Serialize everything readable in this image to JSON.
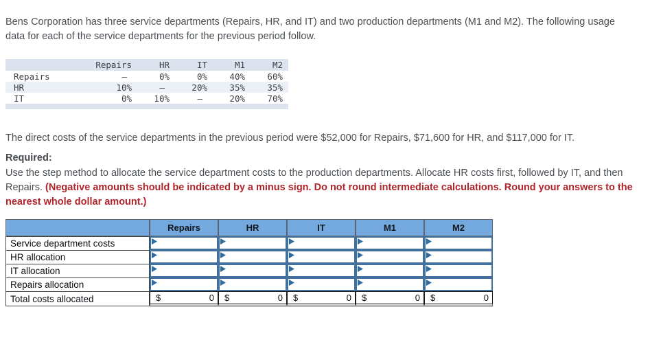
{
  "colors": {
    "body_text": "#4a4e52",
    "emphasis_red": "#ae252b",
    "table_header_blue": "#74a9df",
    "input_border_blue": "#41719c",
    "flag_blue": "#2e6da4",
    "usage_band": "#dce3ef",
    "usage_stripe": "#ecf1f8"
  },
  "intro": {
    "text": "Bens Corporation has three service departments (Repairs, HR, and IT) and two production departments (M1 and M2). The following usage data for each of the service departments for the previous period follow."
  },
  "usage_table": {
    "columns": [
      "Repairs",
      "HR",
      "IT",
      "M1",
      "M2"
    ],
    "rows": [
      {
        "label": "Repairs",
        "values": [
          "–",
          "0%",
          "0%",
          "40%",
          "60%"
        ]
      },
      {
        "label": "HR",
        "values": [
          "10%",
          "–",
          "20%",
          "35%",
          "35%"
        ]
      },
      {
        "label": "IT",
        "values": [
          "0%",
          "10%",
          "–",
          "20%",
          "70%"
        ]
      }
    ]
  },
  "direct_costs": {
    "text": "The direct costs of the service departments in the previous period were $52,000 for Repairs, $71,600 for HR, and $117,000 for IT."
  },
  "required": {
    "label": "Required:",
    "text": "Use the step method to allocate the service department costs to the production departments. Allocate HR costs first, followed by IT, and then Repairs. ",
    "emphasis": "(Negative amounts should be indicated by a minus sign. Do not round intermediate calculations. Round your answers to the nearest whole dollar amount.)"
  },
  "allocation_table": {
    "columns": [
      "Repairs",
      "HR",
      "IT",
      "M1",
      "M2"
    ],
    "input_rows": [
      {
        "label": "Service department costs"
      },
      {
        "label": "HR allocation"
      },
      {
        "label": "IT allocation"
      },
      {
        "label": "Repairs allocation"
      }
    ],
    "total_row": {
      "label": "Total costs allocated",
      "currency_symbol": "$",
      "amount": "0"
    }
  }
}
